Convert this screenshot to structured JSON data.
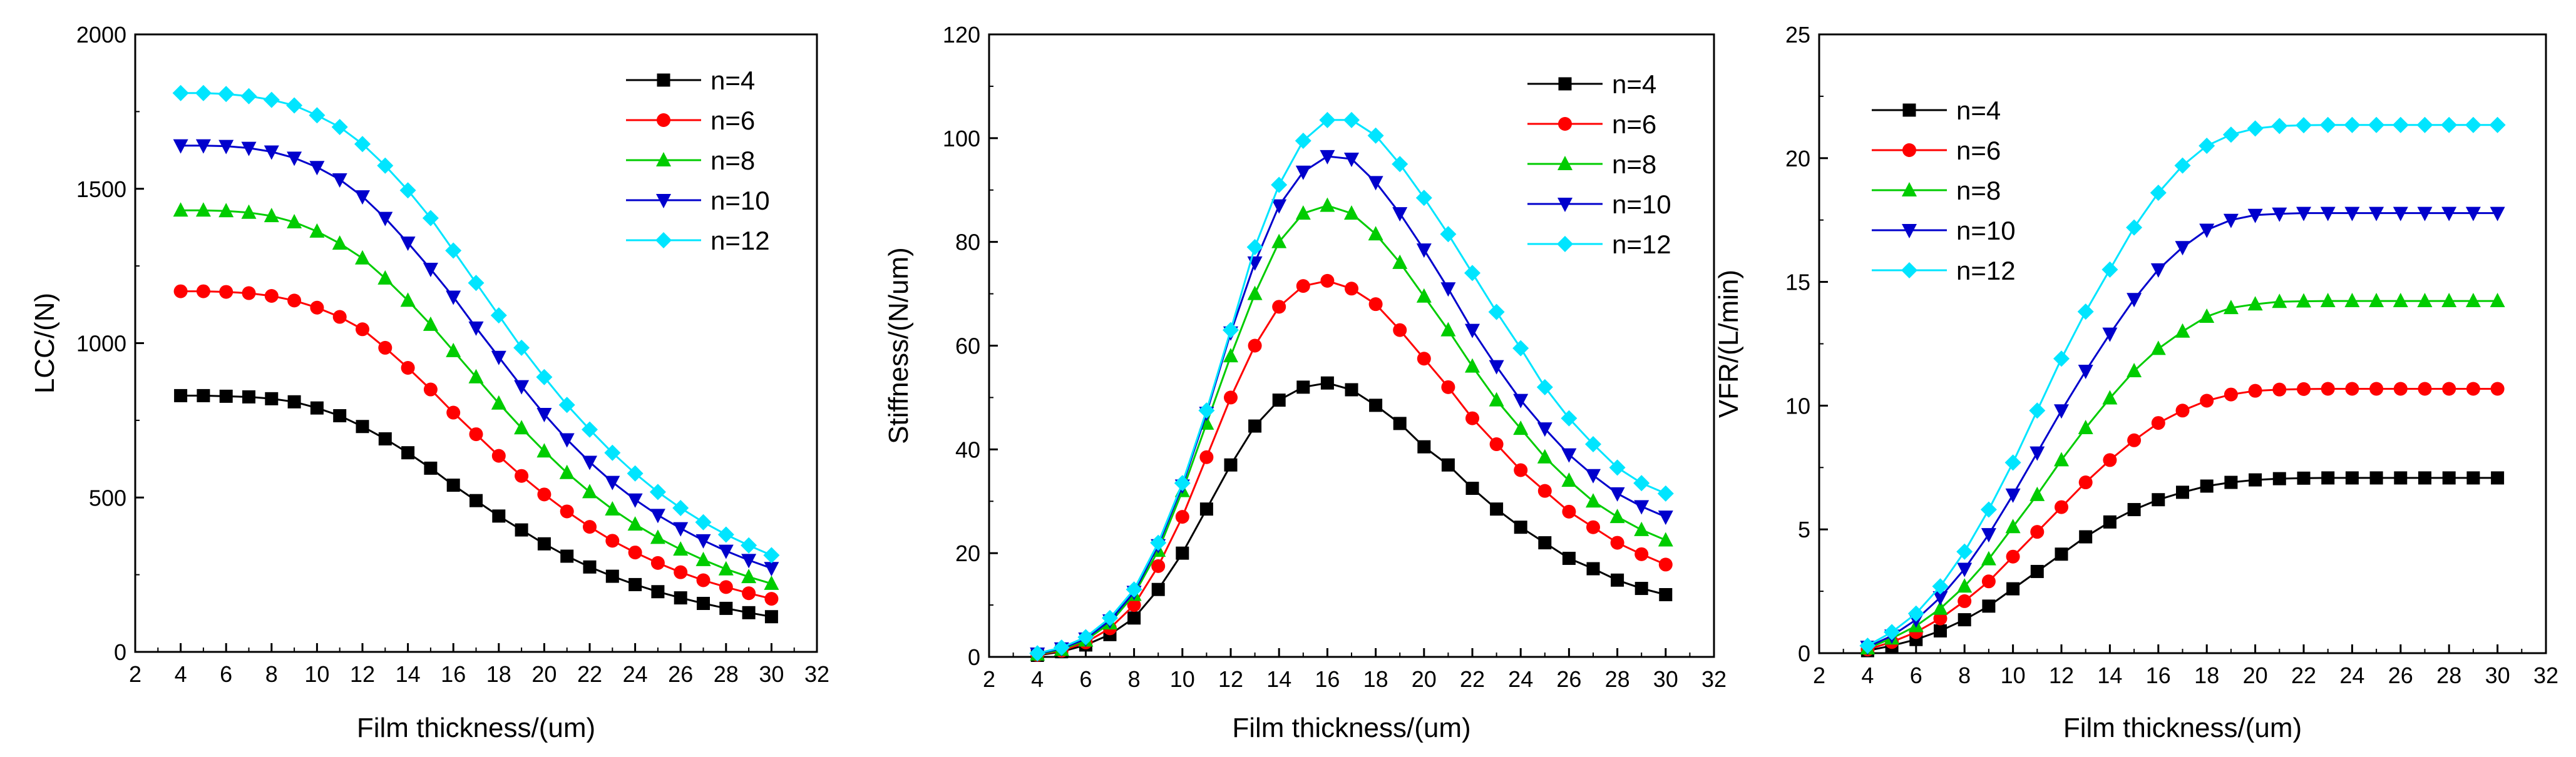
{
  "chart_data": [
    {
      "type": "line",
      "xlabel": "Film thickness/(um)",
      "ylabel": "LCC/(N)",
      "xlim": [
        2,
        32
      ],
      "ylim": [
        0,
        2000
      ],
      "xticks": [
        2,
        4,
        6,
        8,
        10,
        12,
        14,
        16,
        18,
        20,
        22,
        24,
        26,
        28,
        30,
        32
      ],
      "yticks": [
        0,
        500,
        1000,
        1500,
        2000
      ],
      "legend_position": "top-right",
      "x": [
        4,
        5,
        6,
        7,
        8,
        9,
        10,
        11,
        12,
        13,
        14,
        15,
        16,
        17,
        18,
        19,
        20,
        21,
        22,
        23,
        24,
        25,
        26,
        27,
        28,
        29,
        30
      ],
      "series": [
        {
          "name": "n=4",
          "color": "#000000",
          "marker": "square",
          "values": [
            830,
            830,
            828,
            826,
            820,
            810,
            790,
            765,
            730,
            690,
            645,
            595,
            540,
            490,
            440,
            395,
            350,
            310,
            275,
            245,
            218,
            195,
            175,
            157,
            141,
            127,
            114
          ]
        },
        {
          "name": "n=6",
          "color": "#ff0000",
          "marker": "circle",
          "values": [
            1168,
            1168,
            1166,
            1162,
            1153,
            1138,
            1115,
            1085,
            1045,
            985,
            920,
            850,
            775,
            705,
            635,
            570,
            510,
            455,
            405,
            360,
            322,
            288,
            258,
            232,
            210,
            190,
            172
          ]
        },
        {
          "name": "n=8",
          "color": "#00cc00",
          "marker": "triangle-up",
          "values": [
            1430,
            1430,
            1428,
            1423,
            1412,
            1392,
            1362,
            1323,
            1275,
            1210,
            1138,
            1060,
            975,
            890,
            805,
            725,
            650,
            580,
            518,
            462,
            413,
            370,
            332,
            298,
            268,
            243,
            221
          ]
        },
        {
          "name": "n=10",
          "color": "#0000cc",
          "marker": "triangle-down",
          "values": [
            1640,
            1640,
            1638,
            1632,
            1620,
            1600,
            1570,
            1530,
            1475,
            1405,
            1325,
            1240,
            1150,
            1050,
            955,
            860,
            770,
            688,
            615,
            550,
            493,
            443,
            400,
            361,
            327,
            297,
            271
          ]
        },
        {
          "name": "n=12",
          "color": "#00e5ff",
          "marker": "diamond",
          "values": [
            1810,
            1810,
            1807,
            1800,
            1788,
            1770,
            1738,
            1700,
            1645,
            1575,
            1495,
            1405,
            1300,
            1195,
            1090,
            985,
            890,
            800,
            720,
            645,
            578,
            518,
            466,
            420,
            380,
            345,
            313
          ]
        }
      ]
    },
    {
      "type": "line",
      "xlabel": "Film thickness/(um)",
      "ylabel": "Stiffness/(N/um)",
      "xlim": [
        2,
        32
      ],
      "ylim": [
        0,
        120
      ],
      "xticks": [
        2,
        4,
        6,
        8,
        10,
        12,
        14,
        16,
        18,
        20,
        22,
        24,
        26,
        28,
        30,
        32
      ],
      "yticks": [
        0,
        20,
        40,
        60,
        80,
        100,
        120
      ],
      "legend_position": "top-right",
      "x": [
        4,
        5,
        6,
        7,
        8,
        9,
        10,
        11,
        12,
        13,
        14,
        15,
        16,
        17,
        18,
        19,
        20,
        21,
        22,
        23,
        24,
        25,
        26,
        27,
        28,
        29,
        30
      ],
      "series": [
        {
          "name": "n=4",
          "color": "#000000",
          "marker": "square",
          "values": [
            0.3,
            1.0,
            2.3,
            4.3,
            7.5,
            13.0,
            20.0,
            28.5,
            37.0,
            44.5,
            49.5,
            52.0,
            52.8,
            51.5,
            48.5,
            45.0,
            40.5,
            37.0,
            32.5,
            28.5,
            25.0,
            22.0,
            19.0,
            17.0,
            14.8,
            13.2,
            12.0
          ]
        },
        {
          "name": "n=6",
          "color": "#ff0000",
          "marker": "circle",
          "values": [
            0.4,
            1.2,
            2.8,
            5.5,
            10.0,
            17.5,
            27.0,
            38.5,
            50.0,
            60.0,
            67.5,
            71.5,
            72.5,
            71.0,
            68.0,
            63.0,
            57.5,
            52.0,
            46.0,
            41.0,
            36.0,
            32.0,
            28.0,
            25.0,
            22.0,
            19.8,
            17.8
          ]
        },
        {
          "name": "n=8",
          "color": "#00cc00",
          "marker": "triangle-up",
          "values": [
            0.5,
            1.4,
            3.2,
            6.5,
            12.0,
            20.5,
            32.0,
            45.0,
            58.0,
            70.0,
            80.0,
            85.5,
            87.0,
            85.5,
            81.5,
            76.0,
            69.5,
            63.0,
            56.0,
            49.5,
            44.0,
            38.5,
            34.0,
            30.0,
            27.0,
            24.5,
            22.5
          ]
        },
        {
          "name": "n=10",
          "color": "#0000cc",
          "marker": "triangle-down",
          "values": [
            0.6,
            1.6,
            3.5,
            7.0,
            12.5,
            21.5,
            33.0,
            47.0,
            62.5,
            76.0,
            87.0,
            93.5,
            96.5,
            96.0,
            91.5,
            85.5,
            78.5,
            71.0,
            63.0,
            56.0,
            49.5,
            44.0,
            39.0,
            35.0,
            31.5,
            29.0,
            27.0
          ]
        },
        {
          "name": "n=12",
          "color": "#00e5ff",
          "marker": "diamond",
          "values": [
            0.7,
            1.8,
            3.8,
            7.5,
            13.0,
            22.0,
            33.5,
            47.5,
            63.0,
            79.0,
            91.0,
            99.5,
            103.5,
            103.5,
            100.5,
            95.0,
            88.5,
            81.5,
            74.0,
            66.5,
            59.5,
            52.0,
            46.0,
            41.0,
            36.5,
            33.5,
            31.5
          ]
        }
      ]
    },
    {
      "type": "line",
      "xlabel": "Film thickness/(um)",
      "ylabel": "VFR/(L/min)",
      "xlim": [
        2,
        32
      ],
      "ylim": [
        0,
        25
      ],
      "xticks": [
        2,
        4,
        6,
        8,
        10,
        12,
        14,
        16,
        18,
        20,
        22,
        24,
        26,
        28,
        30,
        32
      ],
      "yticks": [
        0,
        5,
        10,
        15,
        20,
        25
      ],
      "legend_position": "top-left",
      "x": [
        4,
        5,
        6,
        7,
        8,
        9,
        10,
        11,
        12,
        13,
        14,
        15,
        16,
        17,
        18,
        19,
        20,
        21,
        22,
        23,
        24,
        25,
        26,
        27,
        28,
        29,
        30
      ],
      "series": [
        {
          "name": "n=4",
          "color": "#000000",
          "marker": "square",
          "values": [
            0.1,
            0.3,
            0.55,
            0.9,
            1.35,
            1.9,
            2.6,
            3.3,
            4.0,
            4.7,
            5.3,
            5.8,
            6.2,
            6.5,
            6.75,
            6.9,
            7.0,
            7.05,
            7.07,
            7.08,
            7.08,
            7.08,
            7.08,
            7.08,
            7.08,
            7.08,
            7.08
          ]
        },
        {
          "name": "n=6",
          "color": "#ff0000",
          "marker": "circle",
          "values": [
            0.15,
            0.45,
            0.85,
            1.4,
            2.1,
            2.9,
            3.9,
            4.9,
            5.9,
            6.9,
            7.8,
            8.6,
            9.3,
            9.8,
            10.2,
            10.45,
            10.6,
            10.65,
            10.67,
            10.68,
            10.68,
            10.68,
            10.68,
            10.68,
            10.68,
            10.68,
            10.68
          ]
        },
        {
          "name": "n=8",
          "color": "#00cc00",
          "marker": "triangle-up",
          "values": [
            0.2,
            0.6,
            1.1,
            1.8,
            2.7,
            3.8,
            5.1,
            6.4,
            7.8,
            9.1,
            10.3,
            11.4,
            12.3,
            13.0,
            13.6,
            13.95,
            14.1,
            14.2,
            14.22,
            14.23,
            14.23,
            14.23,
            14.23,
            14.23,
            14.23,
            14.23,
            14.23
          ]
        },
        {
          "name": "n=10",
          "color": "#0000cc",
          "marker": "triangle-down",
          "values": [
            0.25,
            0.7,
            1.35,
            2.25,
            3.4,
            4.8,
            6.4,
            8.1,
            9.8,
            11.4,
            12.9,
            14.3,
            15.5,
            16.4,
            17.1,
            17.5,
            17.7,
            17.75,
            17.78,
            17.78,
            17.78,
            17.78,
            17.78,
            17.78,
            17.78,
            17.78,
            17.78
          ]
        },
        {
          "name": "n=12",
          "color": "#00e5ff",
          "marker": "diamond",
          "values": [
            0.3,
            0.85,
            1.6,
            2.7,
            4.1,
            5.8,
            7.7,
            9.8,
            11.9,
            13.8,
            15.5,
            17.2,
            18.6,
            19.7,
            20.5,
            20.95,
            21.2,
            21.3,
            21.33,
            21.34,
            21.34,
            21.34,
            21.34,
            21.34,
            21.34,
            21.34,
            21.34
          ]
        }
      ]
    }
  ]
}
